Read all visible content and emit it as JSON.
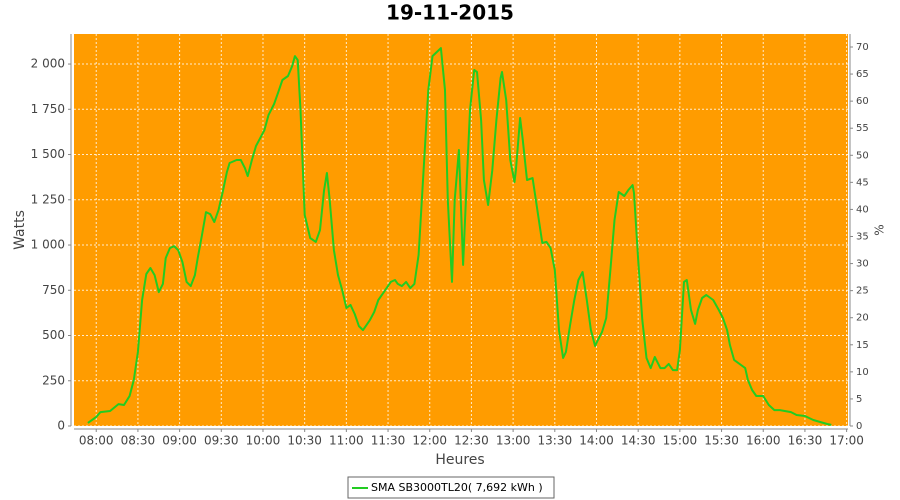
{
  "chart_data": {
    "type": "line",
    "title": "19-11-2015",
    "x_label": "Heures",
    "y_label": "Watts",
    "y2_label": "%",
    "background": "#ff9c00",
    "grid": true,
    "legend": "bottom",
    "xlim": [
      "07:44",
      "17:01"
    ],
    "xticks": [
      "08:00",
      "08:30",
      "09:00",
      "09:30",
      "10:00",
      "10:30",
      "11:00",
      "11:30",
      "12:00",
      "12:30",
      "13:00",
      "13:30",
      "14:00",
      "14:30",
      "15:00",
      "15:30",
      "16:00",
      "16:30",
      "17:00"
    ],
    "ylim": [
      0,
      2166
    ],
    "yticks": [
      0,
      250,
      500,
      750,
      {
        "value": 1000,
        "label": "1 000"
      },
      {
        "value": 1250,
        "label": "1 250"
      },
      {
        "value": 1500,
        "label": "1 500"
      },
      {
        "value": 1750,
        "label": "1 750"
      },
      {
        "value": 2000,
        "label": "2 000"
      }
    ],
    "y2lim": [
      0,
      72.4
    ],
    "y2ticks": [
      0,
      5,
      10,
      15,
      20,
      25,
      30,
      35,
      40,
      45,
      50,
      55,
      60,
      65,
      70
    ],
    "x": [
      "07:54",
      "08:00",
      "08:03",
      "08:10",
      "08:16",
      "08:20",
      "08:24",
      "08:27",
      "08:30",
      "08:33",
      "08:36",
      "08:39",
      "08:42",
      "08:45",
      "08:48",
      "08:50",
      "08:53",
      "08:56",
      "08:59",
      "09:02",
      "09:05",
      "09:08",
      "09:11",
      "09:13",
      "09:16",
      "09:19",
      "09:22",
      "09:25",
      "09:28",
      "09:31",
      "09:34",
      "09:36",
      "09:41",
      "09:44",
      "09:47",
      "09:49",
      "09:52",
      "09:55",
      "09:58",
      "10:01",
      "10:04",
      "10:08",
      "10:11",
      "10:14",
      "10:18",
      "10:21",
      "10:23",
      "10:25",
      "10:27",
      "10:30",
      "10:34",
      "10:38",
      "10:41",
      "10:44",
      "10:46",
      "10:48",
      "10:51",
      "10:54",
      "10:57",
      "11:00",
      "11:03",
      "11:06",
      "11:09",
      "11:12",
      "11:14",
      "11:17",
      "11:20",
      "11:23",
      "11:27",
      "11:32",
      "11:35",
      "11:37",
      "11:40",
      "11:43",
      "11:46",
      "11:49",
      "11:52",
      "11:56",
      "11:59",
      "12:02",
      "12:05",
      "12:08",
      "12:11",
      "12:13",
      "12:16",
      "12:18",
      "12:21",
      "12:24",
      "12:26",
      "12:29",
      "12:32",
      "12:34",
      "12:37",
      "12:39",
      "12:42",
      "12:45",
      "12:48",
      "12:51",
      "12:52",
      "12:55",
      "12:58",
      "13:01",
      "13:02",
      "13:05",
      "13:07",
      "13:10",
      "13:14",
      "13:18",
      "13:21",
      "13:24",
      "13:27",
      "13:30",
      "13:33",
      "13:36",
      "13:38",
      "13:41",
      "13:44",
      "13:47",
      "13:50",
      "13:53",
      "13:56",
      "13:59",
      "14:01",
      "14:04",
      "14:07",
      "14:10",
      "14:13",
      "14:16",
      "14:20",
      "14:23",
      "14:26",
      "14:27",
      "14:30",
      "14:33",
      "14:36",
      "14:39",
      "14:42",
      "14:46",
      "14:49",
      "14:52",
      "14:55",
      "14:58",
      "15:00",
      "15:03",
      "15:05",
      "15:08",
      "15:11",
      "15:13",
      "15:16",
      "15:19",
      "15:24",
      "15:28",
      "15:31",
      "15:34",
      "15:36",
      "15:39",
      "15:44",
      "15:47",
      "15:49",
      "15:52",
      "15:55",
      "16:00",
      "16:04",
      "16:08",
      "16:12",
      "16:20",
      "16:24",
      "16:30",
      "16:36",
      "16:41",
      "16:46",
      "16:49"
    ],
    "series": [
      {
        "name": "SMA SB3000TL20( 7,692 kWh )",
        "color": "#22cc22",
        "values": [
          17,
          50,
          77,
          83,
          121,
          116,
          166,
          254,
          409,
          696,
          840,
          873,
          834,
          740,
          785,
          928,
          983,
          994,
          972,
          906,
          796,
          773,
          834,
          928,
          1050,
          1182,
          1171,
          1127,
          1193,
          1293,
          1403,
          1453,
          1470,
          1470,
          1425,
          1381,
          1470,
          1547,
          1591,
          1635,
          1718,
          1779,
          1845,
          1912,
          1934,
          1989,
          2044,
          2022,
          1746,
          1166,
          1039,
          1017,
          1083,
          1304,
          1398,
          1249,
          972,
          834,
          751,
          652,
          669,
          619,
          552,
          530,
          552,
          586,
          630,
          696,
          740,
          796,
          807,
          785,
          773,
          796,
          762,
          785,
          945,
          1470,
          1856,
          2044,
          2066,
          2088,
          1856,
          1249,
          796,
          1249,
          1525,
          890,
          1249,
          1746,
          1967,
          1956,
          1691,
          1359,
          1221,
          1414,
          1691,
          1923,
          1956,
          1801,
          1470,
          1348,
          1414,
          1702,
          1580,
          1359,
          1370,
          1166,
          1011,
          1017,
          983,
          862,
          530,
          376,
          409,
          558,
          696,
          807,
          851,
          696,
          530,
          442,
          475,
          519,
          597,
          862,
          1138,
          1293,
          1271,
          1304,
          1331,
          1287,
          917,
          586,
          376,
          320,
          381,
          320,
          320,
          343,
          309,
          309,
          420,
          796,
          807,
          641,
          564,
          641,
          707,
          724,
          696,
          641,
          597,
          530,
          448,
          365,
          337,
          320,
          254,
          199,
          166,
          166,
          116,
          88,
          88,
          77,
          61,
          55,
          33,
          22,
          11,
          6
        ]
      }
    ]
  }
}
